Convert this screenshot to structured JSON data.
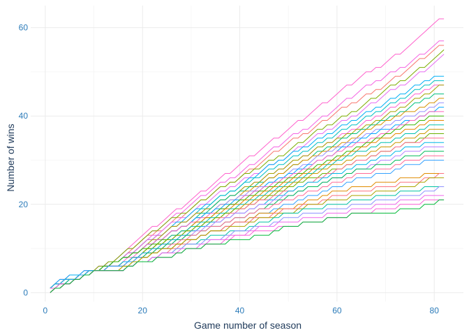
{
  "chart_data": {
    "type": "line",
    "title": "",
    "xlabel": "Game number of season",
    "ylabel": "Number of wins",
    "xlim": [
      -3,
      86
    ],
    "ylim": [
      -2,
      65
    ],
    "x_ticks": [
      0,
      20,
      40,
      60,
      80
    ],
    "y_ticks": [
      0,
      20,
      40,
      60
    ],
    "x_tick_labels": [
      "0",
      "20",
      "40",
      "60",
      "80"
    ],
    "y_tick_labels": [
      "0",
      "20",
      "40",
      "60"
    ],
    "grid": true,
    "legend": "none",
    "x": [
      1,
      5,
      10,
      15,
      20,
      25,
      30,
      35,
      40,
      45,
      50,
      55,
      60,
      65,
      70,
      75,
      80,
      82
    ],
    "series": [
      {
        "color": "#ff61cc",
        "values": [
          1,
          4,
          5,
          8,
          13,
          17,
          21,
          25,
          29,
          33,
          37,
          41,
          45,
          49,
          52,
          56,
          61,
          62
        ]
      },
      {
        "color": "#f564e3",
        "values": [
          1,
          4,
          5,
          8,
          12,
          16,
          20,
          24,
          27,
          31,
          35,
          38,
          42,
          46,
          49,
          52,
          56,
          57
        ]
      },
      {
        "color": "#f8766d",
        "values": [
          0,
          3,
          5,
          7,
          12,
          15,
          19,
          23,
          26,
          30,
          34,
          37,
          41,
          44,
          47,
          51,
          55,
          56
        ]
      },
      {
        "color": "#7cae00",
        "values": [
          1,
          3,
          5,
          8,
          12,
          16,
          19,
          23,
          26,
          29,
          32,
          36,
          39,
          42,
          46,
          49,
          53,
          55
        ]
      },
      {
        "color": "#e76bf3",
        "values": [
          0,
          3,
          5,
          7,
          11,
          15,
          18,
          22,
          25,
          28,
          31,
          35,
          38,
          41,
          45,
          48,
          52,
          54
        ]
      },
      {
        "color": "#00b0f6",
        "values": [
          1,
          4,
          5,
          7,
          11,
          14,
          18,
          21,
          24,
          28,
          31,
          34,
          37,
          40,
          43,
          46,
          49,
          49
        ]
      },
      {
        "color": "#00bfc4",
        "values": [
          0,
          3,
          5,
          7,
          11,
          14,
          17,
          21,
          24,
          27,
          30,
          33,
          36,
          39,
          42,
          45,
          48,
          48
        ]
      },
      {
        "color": "#fd61d1",
        "values": [
          1,
          3,
          5,
          7,
          11,
          14,
          17,
          20,
          23,
          26,
          29,
          32,
          35,
          38,
          41,
          44,
          47,
          47
        ]
      },
      {
        "color": "#a3a500",
        "values": [
          0,
          2,
          5,
          7,
          10,
          14,
          17,
          20,
          23,
          26,
          29,
          32,
          35,
          37,
          40,
          43,
          46,
          47
        ]
      },
      {
        "color": "#00bf7d",
        "values": [
          0,
          3,
          5,
          7,
          10,
          13,
          16,
          20,
          23,
          25,
          28,
          31,
          34,
          37,
          39,
          42,
          45,
          45
        ]
      },
      {
        "color": "#d89000",
        "values": [
          1,
          3,
          5,
          7,
          10,
          13,
          16,
          19,
          22,
          25,
          28,
          31,
          33,
          36,
          39,
          41,
          43,
          44
        ]
      },
      {
        "color": "#9590ff",
        "values": [
          0,
          2,
          5,
          7,
          10,
          13,
          16,
          19,
          22,
          24,
          27,
          30,
          33,
          35,
          38,
          40,
          42,
          43
        ]
      },
      {
        "color": "#00a9ff",
        "values": [
          1,
          3,
          5,
          7,
          10,
          13,
          16,
          19,
          21,
          24,
          27,
          29,
          32,
          35,
          37,
          39,
          41,
          42
        ]
      },
      {
        "color": "#ff62bc",
        "values": [
          0,
          2,
          5,
          6,
          10,
          13,
          16,
          18,
          21,
          24,
          26,
          29,
          32,
          34,
          36,
          39,
          41,
          41
        ]
      },
      {
        "color": "#39b600",
        "values": [
          1,
          3,
          5,
          7,
          10,
          12,
          15,
          18,
          21,
          23,
          26,
          28,
          31,
          33,
          36,
          38,
          40,
          40
        ]
      },
      {
        "color": "#e58700",
        "values": [
          0,
          2,
          5,
          6,
          9,
          12,
          15,
          18,
          20,
          23,
          25,
          28,
          30,
          33,
          35,
          37,
          39,
          39
        ]
      },
      {
        "color": "#00c0af",
        "values": [
          1,
          3,
          5,
          6,
          9,
          12,
          15,
          17,
          20,
          22,
          25,
          27,
          30,
          32,
          34,
          36,
          38,
          38
        ]
      },
      {
        "color": "#c99800",
        "values": [
          0,
          2,
          5,
          6,
          9,
          12,
          14,
          17,
          19,
          22,
          24,
          27,
          29,
          31,
          33,
          35,
          37,
          37
        ]
      },
      {
        "color": "#6bb100",
        "values": [
          1,
          3,
          5,
          6,
          9,
          12,
          14,
          17,
          19,
          21,
          24,
          26,
          28,
          30,
          32,
          34,
          36,
          36
        ]
      },
      {
        "color": "#ff6c91",
        "values": [
          0,
          2,
          5,
          6,
          9,
          11,
          14,
          16,
          19,
          21,
          23,
          25,
          28,
          30,
          32,
          34,
          35,
          35
        ]
      },
      {
        "color": "#00b8e7",
        "values": [
          1,
          3,
          5,
          6,
          9,
          11,
          14,
          16,
          18,
          20,
          23,
          25,
          27,
          29,
          31,
          33,
          34,
          34
        ]
      },
      {
        "color": "#b983ff",
        "values": [
          0,
          2,
          5,
          6,
          8,
          11,
          13,
          16,
          18,
          20,
          22,
          24,
          26,
          28,
          30,
          32,
          33,
          33
        ]
      },
      {
        "color": "#00bc59",
        "values": [
          1,
          3,
          5,
          6,
          8,
          11,
          13,
          15,
          17,
          19,
          22,
          24,
          26,
          28,
          29,
          31,
          32,
          32
        ]
      },
      {
        "color": "#ff6a98",
        "values": [
          0,
          2,
          5,
          6,
          8,
          10,
          13,
          15,
          17,
          19,
          21,
          23,
          25,
          27,
          28,
          30,
          31,
          31
        ]
      },
      {
        "color": "#35a2ff",
        "values": [
          1,
          3,
          5,
          6,
          8,
          10,
          12,
          14,
          16,
          18,
          20,
          22,
          24,
          26,
          27,
          29,
          30,
          30
        ]
      },
      {
        "color": "#e08b00",
        "values": [
          0,
          2,
          5,
          5,
          8,
          10,
          12,
          14,
          16,
          18,
          19,
          21,
          23,
          24,
          25,
          26,
          27,
          27
        ]
      },
      {
        "color": "#fc717f",
        "values": [
          1,
          2,
          5,
          5,
          7,
          9,
          12,
          14,
          16,
          17,
          19,
          20,
          22,
          23,
          24,
          25,
          26,
          27
        ]
      },
      {
        "color": "#aba300",
        "values": [
          0,
          2,
          5,
          5,
          8,
          10,
          12,
          14,
          15,
          17,
          18,
          20,
          21,
          22,
          23,
          24,
          26,
          26
        ]
      },
      {
        "color": "#00c1a3",
        "values": [
          1,
          2,
          5,
          5,
          7,
          9,
          11,
          13,
          14,
          16,
          18,
          19,
          20,
          21,
          22,
          23,
          24,
          24
        ]
      },
      {
        "color": "#8f91ff",
        "values": [
          0,
          2,
          5,
          5,
          7,
          9,
          11,
          12,
          14,
          15,
          17,
          18,
          19,
          20,
          21,
          22,
          23,
          24
        ]
      },
      {
        "color": "#ef67eb",
        "values": [
          0,
          2,
          5,
          5,
          7,
          9,
          10,
          12,
          13,
          15,
          16,
          17,
          18,
          19,
          20,
          21,
          22,
          22
        ]
      },
      {
        "color": "#fb61d7",
        "values": [
          1,
          2,
          5,
          5,
          7,
          8,
          10,
          11,
          13,
          14,
          15,
          16,
          17,
          18,
          19,
          20,
          21,
          21
        ]
      },
      {
        "color": "#00ba38",
        "values": [
          0,
          2,
          5,
          5,
          7,
          8,
          10,
          11,
          12,
          13,
          15,
          16,
          17,
          18,
          18,
          19,
          20,
          21
        ]
      }
    ]
  }
}
